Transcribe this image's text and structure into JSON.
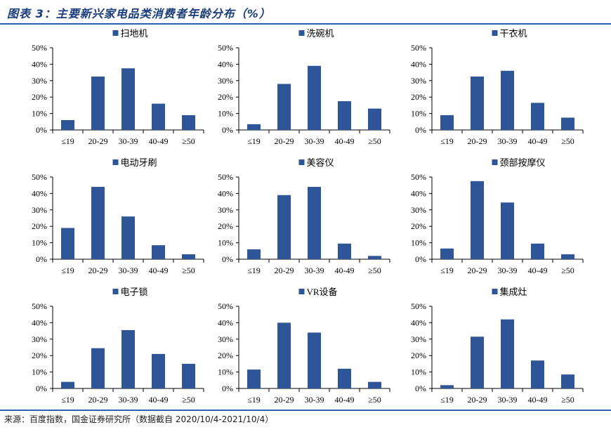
{
  "page": {
    "title": "图表 3：主要新兴家电品类消费者年龄分布（%）",
    "source": "来源：百度指数，国金证券研究所（数据截自 2020/10/4-2021/10/4）"
  },
  "colors": {
    "bar": "#2e5597",
    "rule": "#2b61b2",
    "title": "#1a3d7c"
  },
  "chart_data": [
    {
      "type": "bar",
      "title": "扫地机",
      "legend": "扫地机",
      "categories": [
        "≤19",
        "20-29",
        "30-39",
        "40-49",
        "≥50"
      ],
      "values": [
        6,
        32.5,
        37.5,
        16,
        9
      ],
      "ylim": [
        0,
        50
      ],
      "yticks": [
        "0%",
        "10%",
        "20%",
        "30%",
        "40%",
        "50%"
      ],
      "grid": false
    },
    {
      "type": "bar",
      "title": "洗碗机",
      "legend": "洗碗机",
      "categories": [
        "≤19",
        "20-29",
        "30-39",
        "40-49",
        "≥50"
      ],
      "values": [
        3.5,
        28,
        39,
        17.5,
        13
      ],
      "ylim": [
        0,
        50
      ],
      "yticks": [
        "0%",
        "10%",
        "20%",
        "30%",
        "40%",
        "50%"
      ],
      "grid": false
    },
    {
      "type": "bar",
      "title": "干衣机",
      "legend": "干衣机",
      "categories": [
        "≤19",
        "20-29",
        "30-39",
        "40-49",
        "≥50"
      ],
      "values": [
        9,
        32.5,
        36,
        16.5,
        7.5
      ],
      "ylim": [
        0,
        50
      ],
      "yticks": [
        "0%",
        "10%",
        "20%",
        "30%",
        "40%",
        "50%"
      ],
      "grid": false
    },
    {
      "type": "bar",
      "title": "电动牙刷",
      "legend": "电动牙刷",
      "categories": [
        "≤19",
        "20-29",
        "30-39",
        "40-49",
        "≥50"
      ],
      "values": [
        19,
        44,
        26,
        8.5,
        3
      ],
      "ylim": [
        0,
        50
      ],
      "yticks": [
        "0%",
        "10%",
        "20%",
        "30%",
        "40%",
        "50%"
      ],
      "grid": false
    },
    {
      "type": "bar",
      "title": "美容仪",
      "legend": "美容仪",
      "categories": [
        "≤19",
        "20-29",
        "30-39",
        "40-49",
        "≥50"
      ],
      "values": [
        6,
        39,
        44,
        9.5,
        2
      ],
      "ylim": [
        0,
        50
      ],
      "yticks": [
        "0%",
        "10%",
        "20%",
        "30%",
        "40%",
        "50%"
      ],
      "grid": false
    },
    {
      "type": "bar",
      "title": "颈部按摩仪",
      "legend": "颈部按摩仪",
      "categories": [
        "≤19",
        "20-29",
        "30-39",
        "40-49",
        "≥50"
      ],
      "values": [
        6.5,
        47.5,
        34.5,
        9.5,
        3
      ],
      "ylim": [
        0,
        50
      ],
      "yticks": [
        "0%",
        "10%",
        "20%",
        "30%",
        "40%",
        "50%"
      ],
      "grid": false
    },
    {
      "type": "bar",
      "title": "电子锁",
      "legend": "电子锁",
      "categories": [
        "≤19",
        "20-29",
        "30-39",
        "40-49",
        "≥50"
      ],
      "values": [
        4,
        24.5,
        35.5,
        21,
        15
      ],
      "ylim": [
        0,
        50
      ],
      "yticks": [
        "0%",
        "10%",
        "20%",
        "30%",
        "40%",
        "50%"
      ],
      "grid": false
    },
    {
      "type": "bar",
      "title": "VR设备",
      "legend": "VR设备",
      "categories": [
        "≤19",
        "20-29",
        "30-39",
        "40-49",
        "≥50"
      ],
      "values": [
        11.5,
        40,
        34,
        12,
        4
      ],
      "ylim": [
        0,
        50
      ],
      "yticks": [
        "0%",
        "10%",
        "20%",
        "30%",
        "40%",
        "50%"
      ],
      "grid": false
    },
    {
      "type": "bar",
      "title": "集成灶",
      "legend": "集成灶",
      "categories": [
        "≤19",
        "20-29",
        "30-39",
        "40-49",
        "≥50"
      ],
      "values": [
        2,
        31.5,
        42,
        17,
        8.5
      ],
      "ylim": [
        0,
        50
      ],
      "yticks": [
        "0%",
        "10%",
        "20%",
        "30%",
        "40%",
        "50%"
      ],
      "grid": false
    }
  ]
}
